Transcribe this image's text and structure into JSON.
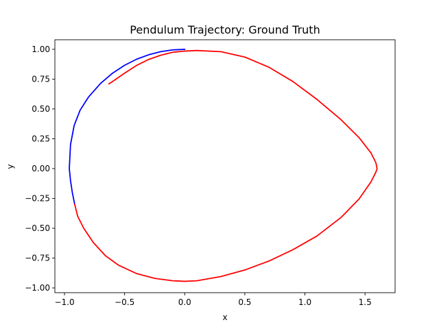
{
  "chart_data": {
    "type": "line",
    "title": "Pendulum Trajectory: Ground Truth",
    "xlabel": "x",
    "ylabel": "y",
    "xlim": [
      -1.08,
      1.75
    ],
    "ylim": [
      -1.04,
      1.08
    ],
    "grid": false,
    "legend": "none",
    "xticks": [
      -1.0,
      -0.5,
      0.0,
      0.5,
      1.0,
      1.5
    ],
    "xtick_labels": [
      "−1.0",
      "−0.5",
      "0.0",
      "0.5",
      "1.0",
      "1.5"
    ],
    "yticks": [
      -1.0,
      -0.75,
      -0.5,
      -0.25,
      0.0,
      0.25,
      0.5,
      0.75,
      1.0
    ],
    "ytick_labels": [
      "−1.00",
      "−0.75",
      "−0.50",
      "−0.25",
      "0.00",
      "0.25",
      "0.50",
      "0.75",
      "1.00"
    ],
    "series": [
      {
        "color": "#0000ff",
        "points": [
          [
            0.0,
            1.0
          ],
          [
            -0.1,
            0.995
          ],
          [
            -0.2,
            0.98
          ],
          [
            -0.3,
            0.954
          ],
          [
            -0.4,
            0.917
          ],
          [
            -0.5,
            0.866
          ],
          [
            -0.6,
            0.8
          ],
          [
            -0.7,
            0.714
          ],
          [
            -0.8,
            0.6
          ],
          [
            -0.87,
            0.49
          ],
          [
            -0.92,
            0.36
          ],
          [
            -0.95,
            0.2
          ],
          [
            -0.96,
            0.0
          ],
          [
            -0.95,
            -0.1
          ],
          [
            -0.935,
            -0.2
          ],
          [
            -0.915,
            -0.3
          ]
        ]
      },
      {
        "color": "#ff0000",
        "points": [
          [
            -0.915,
            -0.3
          ],
          [
            -0.89,
            -0.4
          ],
          [
            -0.84,
            -0.5
          ],
          [
            -0.76,
            -0.62
          ],
          [
            -0.66,
            -0.73
          ],
          [
            -0.55,
            -0.81
          ],
          [
            -0.4,
            -0.88
          ],
          [
            -0.25,
            -0.92
          ],
          [
            -0.1,
            -0.94
          ],
          [
            0.0,
            -0.945
          ],
          [
            0.1,
            -0.94
          ],
          [
            0.3,
            -0.905
          ],
          [
            0.5,
            -0.85
          ],
          [
            0.7,
            -0.775
          ],
          [
            0.9,
            -0.68
          ],
          [
            1.1,
            -0.565
          ],
          [
            1.3,
            -0.41
          ],
          [
            1.45,
            -0.255
          ],
          [
            1.55,
            -0.11
          ],
          [
            1.59,
            -0.03
          ],
          [
            1.6,
            0.0
          ],
          [
            1.59,
            0.05
          ],
          [
            1.55,
            0.13
          ],
          [
            1.45,
            0.26
          ],
          [
            1.3,
            0.41
          ],
          [
            1.1,
            0.58
          ],
          [
            0.9,
            0.73
          ],
          [
            0.7,
            0.85
          ],
          [
            0.5,
            0.935
          ],
          [
            0.3,
            0.98
          ],
          [
            0.1,
            0.99
          ],
          [
            0.0,
            0.985
          ],
          [
            -0.1,
            0.975
          ],
          [
            -0.2,
            0.95
          ],
          [
            -0.3,
            0.915
          ],
          [
            -0.4,
            0.865
          ],
          [
            -0.5,
            0.8
          ],
          [
            -0.6,
            0.73
          ],
          [
            -0.63,
            0.71
          ]
        ]
      }
    ]
  }
}
